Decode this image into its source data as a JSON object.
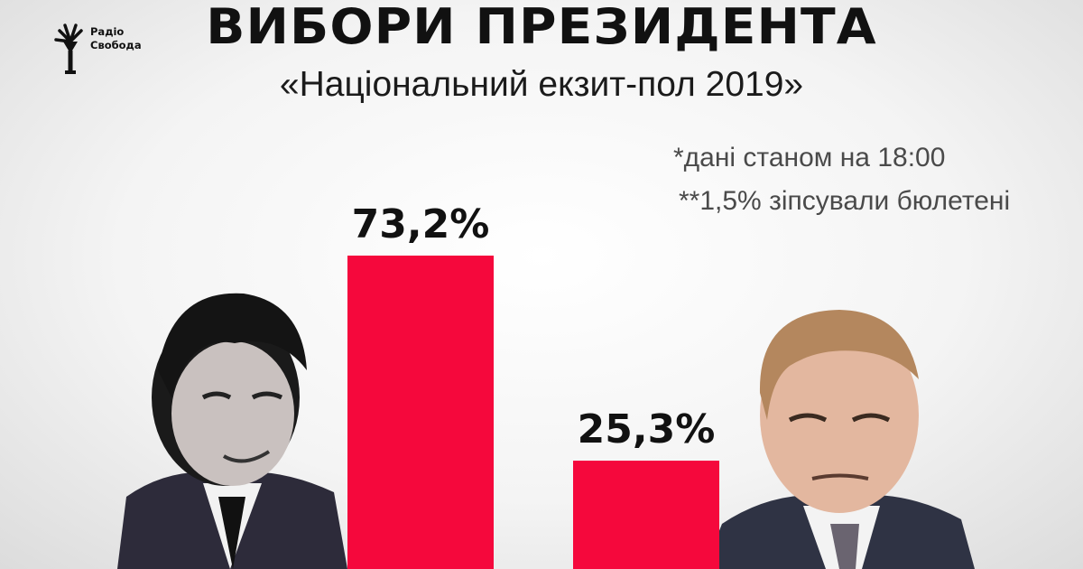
{
  "logo": {
    "line1": "Радіо",
    "line2": "Свобода"
  },
  "title": "ВИБОРИ ПРЕЗИДЕНТА",
  "subtitle": "«Національний екзит-пол 2019»",
  "notes": [
    "*дані станом на 18:00",
    "**1,5% зіпсували бюлетені"
  ],
  "chart_data": {
    "type": "bar",
    "categories": [
      "",
      ""
    ],
    "values": [
      73.2,
      25.3
    ],
    "value_labels": [
      "73,2%",
      "25,3%"
    ],
    "title": "ВИБОРИ ПРЕЗИДЕНТА",
    "subtitle": "«Національний екзит-пол 2019»",
    "xlabel": "",
    "ylabel": "",
    "ylim": [
      0,
      100
    ],
    "grid": false,
    "bar_color": "#f5083c"
  },
  "colors": {
    "bar": "#f5083c",
    "text": "#111111",
    "note": "#4a4a4a"
  }
}
